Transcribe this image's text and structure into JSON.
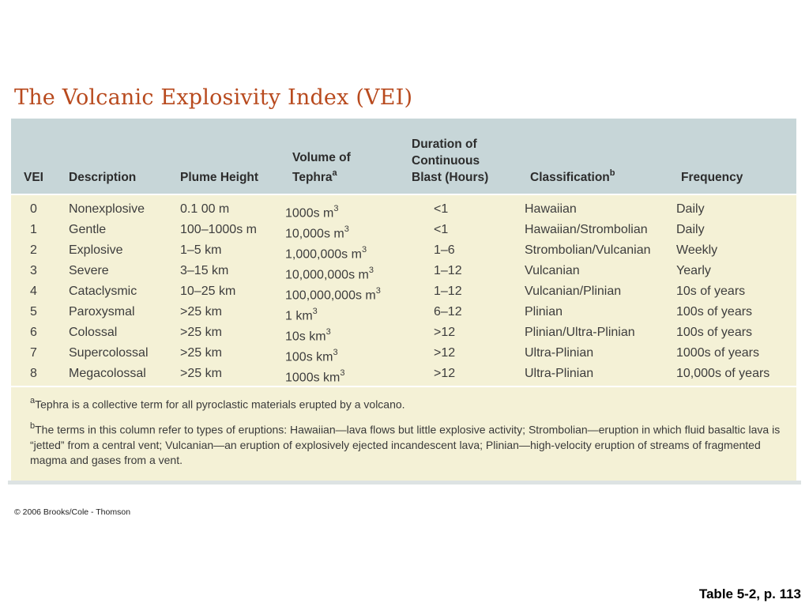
{
  "title": "The Volcanic Explosivity Index (VEI)",
  "headers": {
    "vei": "VEI",
    "description": "Description",
    "plume_height": "Plume Height",
    "volume_line1": "Volume of",
    "volume_line2": "Tephra",
    "volume_sup": "a",
    "duration_line1": "Duration of",
    "duration_line2": "Continuous",
    "duration_line3": "Blast (Hours)",
    "classification": "Classification",
    "classification_sup": "b",
    "frequency": "Frequency"
  },
  "rows": [
    {
      "vei": "0",
      "description": "Nonexplosive",
      "plume": "0.1 00 m",
      "volume": "1000s m",
      "volume_sup": "3",
      "duration": "<1",
      "classification": "Hawaiian",
      "frequency": "Daily"
    },
    {
      "vei": "1",
      "description": "Gentle",
      "plume": "100–1000s m",
      "volume": "10,000s m",
      "volume_sup": "3",
      "duration": "<1",
      "classification": "Hawaiian/Strombolian",
      "frequency": "Daily"
    },
    {
      "vei": "2",
      "description": "Explosive",
      "plume": "1–5 km",
      "volume": "1,000,000s m",
      "volume_sup": "3",
      "duration": "1–6",
      "classification": "Strombolian/Vulcanian",
      "frequency": "Weekly"
    },
    {
      "vei": "3",
      "description": "Severe",
      "plume": "3–15 km",
      "volume": "10,000,000s m",
      "volume_sup": "3",
      "duration": "1–12",
      "classification": "Vulcanian",
      "frequency": "Yearly"
    },
    {
      "vei": "4",
      "description": "Cataclysmic",
      "plume": "10–25 km",
      "volume": "100,000,000s m",
      "volume_sup": "3",
      "duration": "1–12",
      "classification": "Vulcanian/Plinian",
      "frequency": "10s of years"
    },
    {
      "vei": "5",
      "description": "Paroxysmal",
      "plume": ">25 km",
      "volume": "1 km",
      "volume_sup": "3",
      "duration": "6–12",
      "classification": "Plinian",
      "frequency": "100s of years"
    },
    {
      "vei": "6",
      "description": "Colossal",
      "plume": ">25 km",
      "volume": "10s km",
      "volume_sup": "3",
      "duration": ">12",
      "classification": "Plinian/Ultra-Plinian",
      "frequency": "100s of years"
    },
    {
      "vei": "7",
      "description": "Supercolossal",
      "plume": ">25 km",
      "volume": "100s km",
      "volume_sup": "3",
      "duration": ">12",
      "classification": "Ultra-Plinian",
      "frequency": "1000s of years"
    },
    {
      "vei": "8",
      "description": "Megacolossal",
      "plume": ">25 km",
      "volume": "1000s km",
      "volume_sup": "3",
      "duration": ">12",
      "classification": "Ultra-Plinian",
      "frequency": "10,000s of years"
    }
  ],
  "footnotes": {
    "a_sup": "a",
    "a_text": "Tephra is a collective term for all pyroclastic materials erupted by a volcano.",
    "b_sup": "b",
    "b_text": "The terms in this column refer to types of eruptions: Hawaiian—lava flows but little explosive activity; Strombolian—eruption in which fluid basaltic lava is “jetted” from a central vent; Vulcanian—an eruption of explosively ejected incandescent lava; Plinian—high-velocity eruption of streams of fragmented magma and gases from a vent."
  },
  "copyright": "© 2006 Brooks/Cole - Thomson",
  "table_ref": "Table 5-2, p. 113"
}
